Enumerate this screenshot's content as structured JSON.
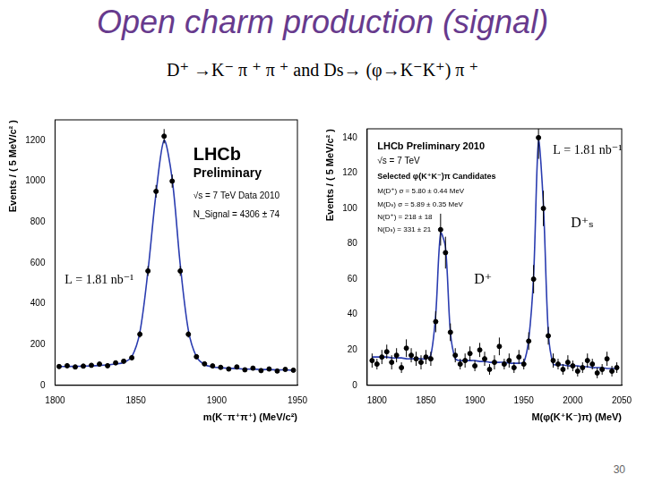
{
  "title": "Open charm production (signal)",
  "subtitle": "D⁺ →K⁻ π ⁺ π ⁺ and Ds→ (φ→K⁻K⁺) π ⁺",
  "page_number": 30,
  "chart_data": [
    {
      "type": "scatter",
      "x_label": "m(K⁻π⁺π⁺) (MeV/c²)",
      "y_label": "Events / ( 5 MeV/c² )",
      "annotations": [
        "LHCb",
        "Preliminary",
        "√s = 7 TeV Data 2010",
        "N_Signal = 4306 ± 74",
        "L = 1.81 nb⁻¹"
      ],
      "x": [
        1802.5,
        1807.5,
        1812.5,
        1817.5,
        1822.5,
        1827.5,
        1832.5,
        1837.5,
        1842.5,
        1847.5,
        1852.5,
        1857.5,
        1862.5,
        1867.5,
        1872.5,
        1877.5,
        1882.5,
        1887.5,
        1892.5,
        1897.5,
        1902.5,
        1907.5,
        1912.5,
        1917.5,
        1922.5,
        1927.5,
        1932.5,
        1937.5,
        1942.5,
        1947.5
      ],
      "series": [
        {
          "color": "#000000",
          "marker": "circle",
          "values": [
            92,
            96,
            90,
            94,
            98,
            104,
            96,
            110,
            118,
            135,
            250,
            560,
            950,
            1220,
            1000,
            560,
            250,
            140,
            105,
            95,
            88,
            80,
            90,
            76,
            84,
            72,
            80,
            70,
            78,
            74
          ],
          "errors": [
            10,
            10,
            9,
            10,
            10,
            10,
            10,
            10,
            11,
            12,
            16,
            24,
            31,
            35,
            32,
            24,
            16,
            12,
            10,
            10,
            9,
            9,
            9,
            9,
            9,
            8,
            9,
            8,
            9,
            9
          ]
        },
        {
          "color": "#2a3cb0",
          "line_style": "solid",
          "values": [
            92,
            92,
            93,
            94,
            95,
            97,
            100,
            104,
            112,
            140,
            260,
            560,
            940,
            1200,
            1010,
            590,
            270,
            140,
            102,
            90,
            86,
            84,
            82,
            80,
            79,
            78,
            77,
            76,
            75,
            74
          ]
        }
      ],
      "xlim": [
        1800,
        1950
      ],
      "xticks": [
        1800,
        1850,
        1900,
        1950
      ],
      "ylim": [
        0,
        1300
      ],
      "yticks": [
        0,
        200,
        400,
        600,
        800,
        1000,
        1200
      ],
      "grid": false
    },
    {
      "type": "scatter",
      "x_label": "M(φ(K⁺K⁻)π) (MeV)",
      "y_label": "Events / ( 5 MeV/c² )",
      "annotations": [
        "LHCb Preliminary 2010",
        "√s = 7 TeV",
        "Selected φ(K⁺K⁻)π Candidates",
        "M(D⁺) σ = 5.80 ± 0.44 MeV",
        "M(Dₛ) σ = 5.89 ± 0.35 MeV",
        "N(D⁺) = 218 ± 18",
        "N(Dₛ) = 331 ± 21",
        "L = 1.81 nb⁻¹",
        "D⁺ₛ",
        "D⁺"
      ],
      "x": [
        1795,
        1800,
        1805,
        1810,
        1815,
        1820,
        1825,
        1830,
        1835,
        1840,
        1845,
        1850,
        1855,
        1860,
        1865,
        1870,
        1875,
        1880,
        1885,
        1890,
        1895,
        1900,
        1905,
        1910,
        1915,
        1920,
        1925,
        1930,
        1935,
        1940,
        1945,
        1950,
        1955,
        1960,
        1965,
        1970,
        1975,
        1980,
        1985,
        1990,
        1995,
        2000,
        2005,
        2010,
        2015,
        2020,
        2025,
        2030,
        2035,
        2040,
        2045
      ],
      "series": [
        {
          "color": "#000000",
          "marker": "circle",
          "values": [
            14,
            12,
            16,
            19,
            13,
            17,
            10,
            21,
            17,
            15,
            13,
            16,
            15,
            36,
            88,
            75,
            30,
            17,
            12,
            14,
            18,
            11,
            20,
            15,
            9,
            13,
            22,
            12,
            14,
            10,
            16,
            12,
            25,
            60,
            140,
            100,
            28,
            14,
            12,
            9,
            13,
            11,
            8,
            10,
            14,
            12,
            7,
            9,
            15,
            8,
            10
          ],
          "errors": [
            4,
            3,
            4,
            4,
            4,
            4,
            3,
            5,
            4,
            4,
            4,
            4,
            4,
            6,
            9,
            9,
            5,
            4,
            3,
            4,
            4,
            3,
            4,
            4,
            3,
            4,
            5,
            3,
            4,
            3,
            4,
            3,
            5,
            8,
            12,
            10,
            5,
            4,
            3,
            3,
            4,
            3,
            3,
            3,
            4,
            3,
            3,
            3,
            4,
            3,
            3
          ]
        },
        {
          "color": "#2a3cb0",
          "line_style": "solid",
          "values": [
            16,
            16,
            16,
            16,
            15.5,
            15.5,
            15.5,
            15,
            15,
            15,
            15,
            15,
            17,
            40,
            86,
            78,
            30,
            15,
            14,
            14,
            14,
            14,
            13.5,
            13.5,
            13,
            13,
            13,
            13,
            12.5,
            12.5,
            12.5,
            13,
            26,
            62,
            138,
            102,
            30,
            12,
            11.5,
            11.5,
            11,
            11,
            11,
            10.5,
            10.5,
            10,
            10,
            10,
            9.5,
            9.5,
            9.5
          ]
        }
      ],
      "xlim": [
        1790,
        2050
      ],
      "xticks": [
        1800,
        1850,
        1900,
        1950,
        2000,
        2050
      ],
      "ylim": [
        0,
        145
      ],
      "yticks": [
        0,
        20,
        40,
        60,
        80,
        100,
        120,
        140
      ],
      "grid": false
    }
  ]
}
